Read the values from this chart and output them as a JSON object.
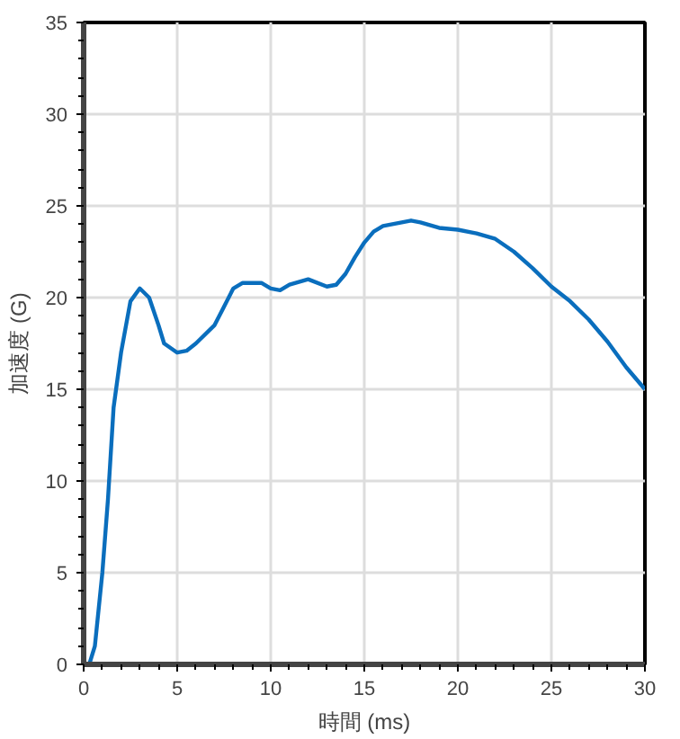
{
  "chart_data": {
    "type": "line",
    "xlabel": "時間 (ms)",
    "ylabel": "加速度 (G)",
    "xlim": [
      0,
      30
    ],
    "ylim": [
      0,
      35
    ],
    "xticks": [
      0,
      5,
      10,
      15,
      20,
      25,
      30
    ],
    "yticks": [
      0,
      5,
      10,
      15,
      20,
      25,
      30,
      35
    ],
    "grid": true,
    "line_style": "solid",
    "series": [
      {
        "color": "#0a6ebd",
        "x": [
          0,
          0.3,
          0.6,
          1,
          1.3,
          1.6,
          2,
          2.5,
          3,
          3.5,
          4,
          4.3,
          5,
          5.5,
          6,
          7,
          7.5,
          8,
          8.5,
          9.5,
          10,
          10.5,
          11,
          12,
          13,
          13.5,
          14,
          14.5,
          15,
          15.5,
          16,
          17,
          17.5,
          18,
          19,
          20,
          21,
          22,
          23,
          24,
          25,
          26,
          27,
          28,
          29,
          30
        ],
        "values": [
          0,
          0,
          1,
          5,
          9,
          14,
          17,
          19.8,
          20.5,
          20,
          18.5,
          17.5,
          17,
          17.1,
          17.5,
          18.5,
          19.5,
          20.5,
          20.8,
          20.8,
          20.5,
          20.4,
          20.7,
          21,
          20.6,
          20.7,
          21.3,
          22.2,
          23,
          23.6,
          23.9,
          24.1,
          24.2,
          24.1,
          23.8,
          23.7,
          23.5,
          23.2,
          22.5,
          21.6,
          20.6,
          19.8,
          18.8,
          17.6,
          16.2,
          15
        ]
      }
    ]
  }
}
